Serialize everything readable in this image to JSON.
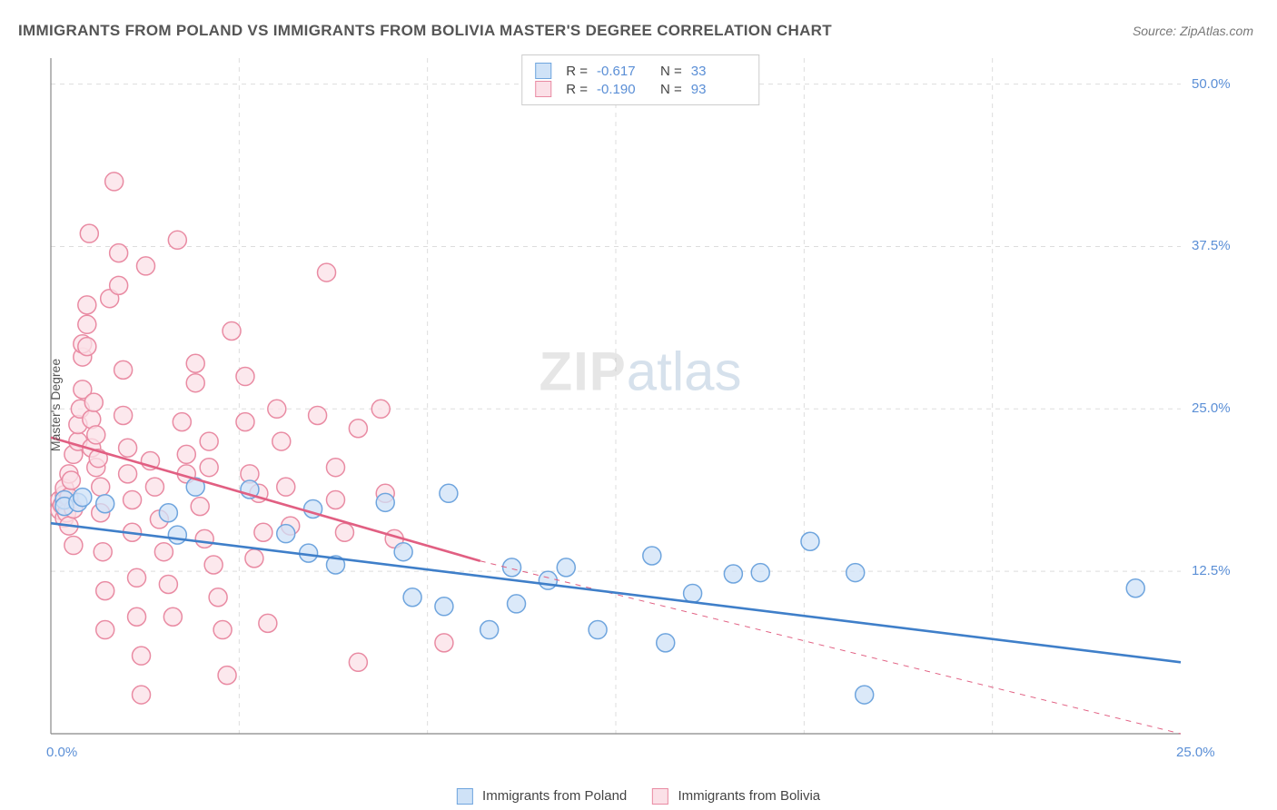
{
  "title": "IMMIGRANTS FROM POLAND VS IMMIGRANTS FROM BOLIVIA MASTER'S DEGREE CORRELATION CHART",
  "source": "Source: ZipAtlas.com",
  "watermark": {
    "zip": "ZIP",
    "atlas": "atlas"
  },
  "chart": {
    "type": "scatter",
    "xlim": [
      0,
      25
    ],
    "ylim": [
      0,
      52
    ],
    "x_ticks": [
      {
        "v": 0,
        "label": "0.0%"
      },
      {
        "v": 25,
        "label": "25.0%"
      }
    ],
    "y_ticks": [
      {
        "v": 12.5,
        "label": "12.5%"
      },
      {
        "v": 25,
        "label": "25.0%"
      },
      {
        "v": 37.5,
        "label": "37.5%"
      },
      {
        "v": 50,
        "label": "50.0%"
      }
    ],
    "ylabel": "Master's Degree",
    "grid_color": "#dddddd",
    "background_color": "#ffffff",
    "axis_color": "#888888",
    "tick_label_color": "#5b8fd6",
    "marker_radius": 10,
    "marker_stroke_width": 1.5,
    "series": {
      "poland": {
        "label": "Immigrants from Poland",
        "fill": "#cfe2f7",
        "stroke": "#6fa5de",
        "line_color": "#3f7fc9",
        "line_width": 2.6,
        "R": "-0.617",
        "N": "33",
        "trend": {
          "x1": 0,
          "y1": 16.2,
          "x2": 25,
          "y2": 5.5,
          "dash": false,
          "extend_dash": false
        },
        "points": [
          [
            0.3,
            18.0
          ],
          [
            0.3,
            17.5
          ],
          [
            0.6,
            17.8
          ],
          [
            0.7,
            18.2
          ],
          [
            1.2,
            17.7
          ],
          [
            2.6,
            17.0
          ],
          [
            2.8,
            15.3
          ],
          [
            3.2,
            19.0
          ],
          [
            4.4,
            18.8
          ],
          [
            5.2,
            15.4
          ],
          [
            5.7,
            13.9
          ],
          [
            5.8,
            17.3
          ],
          [
            6.3,
            13.0
          ],
          [
            7.4,
            17.8
          ],
          [
            7.8,
            14.0
          ],
          [
            8.8,
            18.5
          ],
          [
            8.0,
            10.5
          ],
          [
            8.7,
            9.8
          ],
          [
            9.7,
            8.0
          ],
          [
            10.2,
            12.8
          ],
          [
            10.3,
            10.0
          ],
          [
            11.0,
            11.8
          ],
          [
            11.4,
            12.8
          ],
          [
            12.1,
            8.0
          ],
          [
            13.3,
            13.7
          ],
          [
            13.6,
            7.0
          ],
          [
            14.2,
            10.8
          ],
          [
            15.1,
            12.3
          ],
          [
            15.7,
            12.4
          ],
          [
            16.8,
            14.8
          ],
          [
            17.8,
            12.4
          ],
          [
            18.0,
            3.0
          ],
          [
            24.0,
            11.2
          ]
        ]
      },
      "bolivia": {
        "label": "Immigrants from Bolivia",
        "fill": "#fbe0e7",
        "stroke": "#e98ba3",
        "line_color": "#e15f82",
        "line_width": 2.6,
        "R": "-0.190",
        "N": "93",
        "trend": {
          "x1": 0,
          "y1": 22.8,
          "x2": 9.5,
          "y2": 13.3,
          "dash": false,
          "extend_dash": true,
          "extend_to_x": 25,
          "extend_to_y": -2.2
        },
        "points": [
          [
            0.2,
            18.0
          ],
          [
            0.2,
            17.2
          ],
          [
            0.25,
            17.6
          ],
          [
            0.3,
            18.4
          ],
          [
            0.3,
            16.6
          ],
          [
            0.3,
            18.9
          ],
          [
            0.35,
            17.0
          ],
          [
            0.4,
            20.0
          ],
          [
            0.4,
            18.2
          ],
          [
            0.4,
            16.0
          ],
          [
            0.45,
            19.5
          ],
          [
            0.5,
            17.3
          ],
          [
            0.5,
            21.5
          ],
          [
            0.5,
            14.5
          ],
          [
            0.6,
            22.5
          ],
          [
            0.6,
            23.8
          ],
          [
            0.65,
            25.0
          ],
          [
            0.7,
            29.0
          ],
          [
            0.7,
            26.5
          ],
          [
            0.7,
            30.0
          ],
          [
            0.8,
            29.8
          ],
          [
            0.8,
            31.5
          ],
          [
            0.8,
            33.0
          ],
          [
            0.85,
            38.5
          ],
          [
            0.9,
            24.2
          ],
          [
            0.9,
            22.0
          ],
          [
            0.95,
            25.5
          ],
          [
            1.0,
            23.0
          ],
          [
            1.0,
            20.5
          ],
          [
            1.05,
            21.2
          ],
          [
            1.1,
            19.0
          ],
          [
            1.1,
            17.0
          ],
          [
            1.15,
            14.0
          ],
          [
            1.2,
            11.0
          ],
          [
            1.2,
            8.0
          ],
          [
            1.3,
            33.5
          ],
          [
            1.4,
            42.5
          ],
          [
            1.5,
            37.0
          ],
          [
            1.5,
            34.5
          ],
          [
            1.6,
            28.0
          ],
          [
            1.6,
            24.5
          ],
          [
            1.7,
            22.0
          ],
          [
            1.7,
            20.0
          ],
          [
            1.8,
            18.0
          ],
          [
            1.8,
            15.5
          ],
          [
            1.9,
            12.0
          ],
          [
            1.9,
            9.0
          ],
          [
            2.0,
            6.0
          ],
          [
            2.0,
            3.0
          ],
          [
            2.1,
            36.0
          ],
          [
            2.2,
            21.0
          ],
          [
            2.3,
            19.0
          ],
          [
            2.4,
            16.5
          ],
          [
            2.5,
            14.0
          ],
          [
            2.6,
            11.5
          ],
          [
            2.7,
            9.0
          ],
          [
            2.8,
            38.0
          ],
          [
            2.9,
            24.0
          ],
          [
            3.0,
            21.5
          ],
          [
            3.0,
            20.0
          ],
          [
            3.2,
            28.5
          ],
          [
            3.2,
            27.0
          ],
          [
            3.3,
            17.5
          ],
          [
            3.4,
            15.0
          ],
          [
            3.5,
            22.5
          ],
          [
            3.5,
            20.5
          ],
          [
            3.6,
            13.0
          ],
          [
            3.7,
            10.5
          ],
          [
            3.8,
            8.0
          ],
          [
            3.9,
            4.5
          ],
          [
            4.0,
            31.0
          ],
          [
            4.3,
            27.5
          ],
          [
            4.3,
            24.0
          ],
          [
            4.4,
            20.0
          ],
          [
            4.5,
            13.5
          ],
          [
            4.6,
            18.5
          ],
          [
            4.7,
            15.5
          ],
          [
            4.8,
            8.5
          ],
          [
            5.0,
            25.0
          ],
          [
            5.1,
            22.5
          ],
          [
            5.2,
            19.0
          ],
          [
            5.3,
            16.0
          ],
          [
            5.9,
            24.5
          ],
          [
            6.1,
            35.5
          ],
          [
            6.3,
            20.5
          ],
          [
            6.3,
            18.0
          ],
          [
            6.5,
            15.5
          ],
          [
            6.8,
            23.5
          ],
          [
            6.8,
            5.5
          ],
          [
            7.3,
            25.0
          ],
          [
            7.4,
            18.5
          ],
          [
            7.6,
            15.0
          ],
          [
            8.7,
            7.0
          ]
        ]
      }
    }
  },
  "bottom_legend": {
    "poland": "Immigrants from Poland",
    "bolivia": "Immigrants from Bolivia"
  },
  "stats_labels": {
    "R": "R  = ",
    "N": "N  = "
  }
}
